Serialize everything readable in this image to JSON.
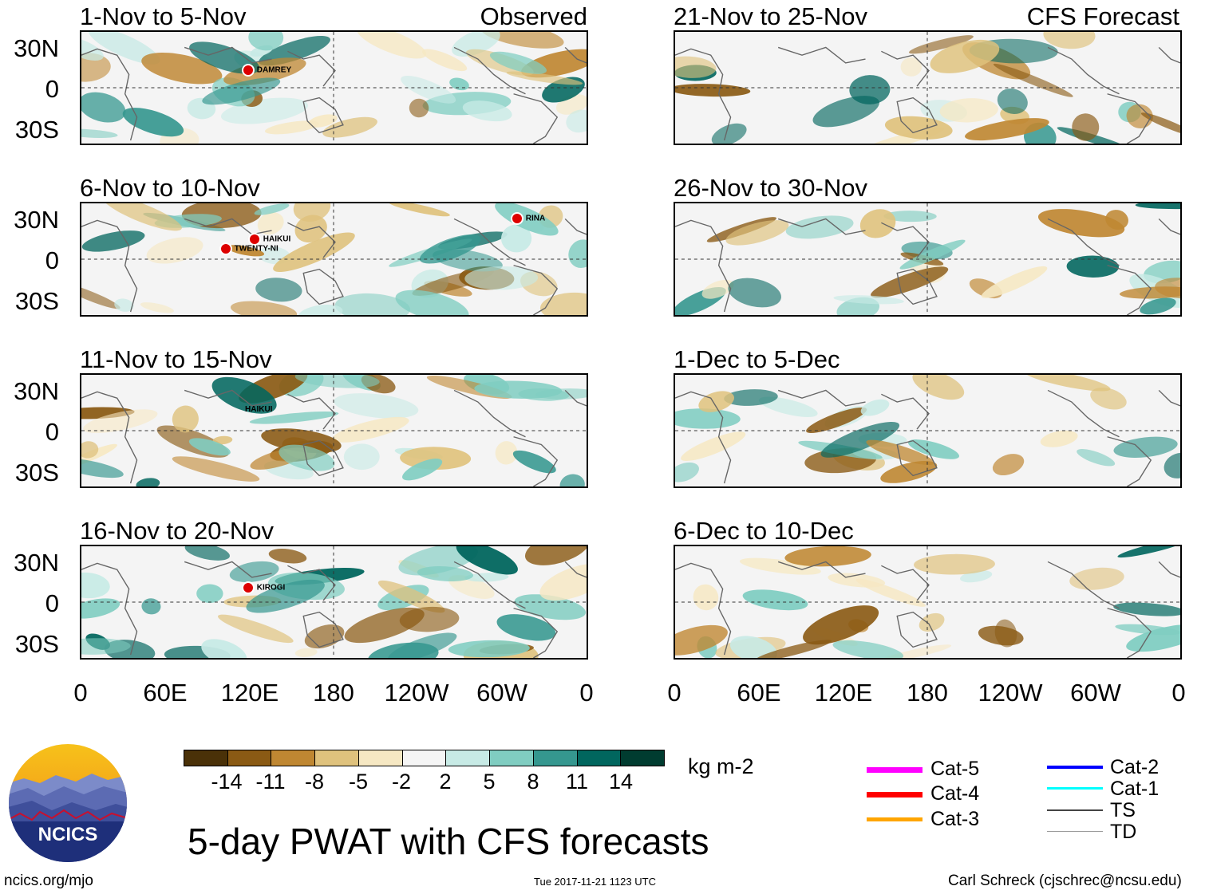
{
  "column_labels": {
    "left": "Observed",
    "right": "CFS Forecast"
  },
  "panels": [
    {
      "title": "1-Nov to 5-Nov",
      "storms": [
        {
          "name": "DAMREY"
        }
      ]
    },
    {
      "title": "6-Nov to 10-Nov",
      "storms": [
        {
          "name": "HAIKUI"
        },
        {
          "name": "TWENTY-NI"
        },
        {
          "name": "RINA"
        }
      ]
    },
    {
      "title": "11-Nov to 15-Nov",
      "storms": [
        {
          "name": "HAIKUI"
        }
      ]
    },
    {
      "title": "16-Nov to 20-Nov",
      "storms": [
        {
          "name": "KIROGI"
        }
      ]
    },
    {
      "title": "21-Nov to 25-Nov",
      "storms": []
    },
    {
      "title": "26-Nov to 30-Nov",
      "storms": []
    },
    {
      "title": "1-Dec to 5-Dec",
      "storms": []
    },
    {
      "title": "6-Dec to 10-Dec",
      "storms": []
    }
  ],
  "lat_labels": [
    "30N",
    "0",
    "30S"
  ],
  "lon_labels": [
    "0",
    "60E",
    "120E",
    "180",
    "120W",
    "60W",
    "0"
  ],
  "colorbar": {
    "ticks": [
      "-14",
      "-11",
      "-8",
      "-5",
      "-2",
      "2",
      "5",
      "8",
      "11",
      "14"
    ],
    "colors": [
      "#4a3108",
      "#8a5a14",
      "#bf8732",
      "#dfc27d",
      "#f6e8c3",
      "#f5f5f5",
      "#c7eae5",
      "#80cdc1",
      "#35978f",
      "#01665e",
      "#003c30"
    ],
    "units": "kg m-2"
  },
  "legend": [
    {
      "label": "Cat-5",
      "color": "#ff00ff"
    },
    {
      "label": "Cat-4",
      "color": "#ff0000"
    },
    {
      "label": "Cat-3",
      "color": "#ffa500"
    },
    {
      "label": "Cat-2",
      "color": "#0000ff"
    },
    {
      "label": "Cat-1",
      "color": "#00ffff"
    },
    {
      "label": "TS",
      "color": "#444444"
    },
    {
      "label": "TD",
      "color": "#999999"
    }
  ],
  "main_title": "5-day PWAT with CFS forecasts",
  "logo_text": "NCICS",
  "footer": {
    "left": "ncics.org/mjo",
    "center": "Tue 2017-11-21 1123 UTC",
    "right": "Carl Schreck (cjschrec@ncsu.edu)"
  }
}
